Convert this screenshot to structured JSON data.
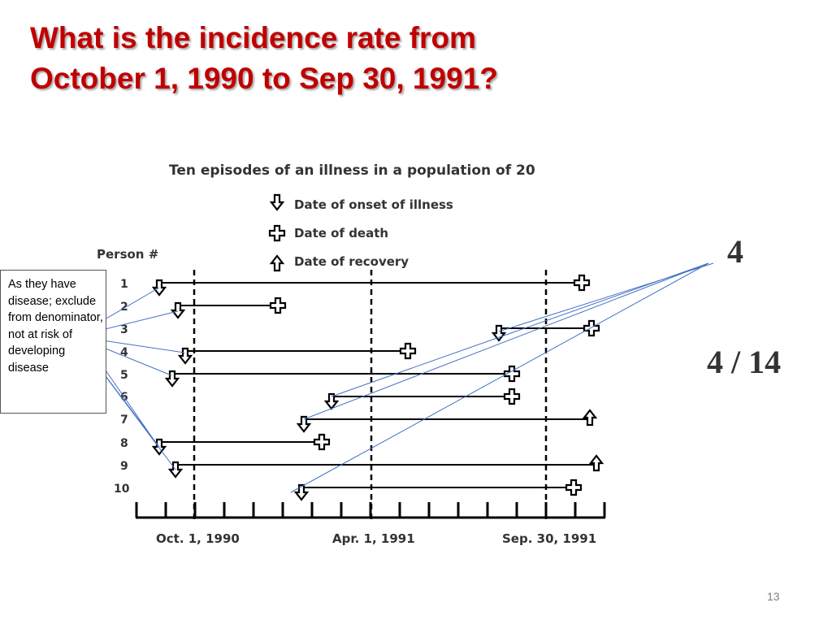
{
  "slide": {
    "title_lines": [
      "What is the incidence rate from",
      "October 1, 1990 to Sep 30, 1991?"
    ],
    "page_number": "13"
  },
  "note": {
    "text": "As they have disease; exclude from denominator, not at risk of developing disease"
  },
  "answers": {
    "count": "4",
    "rate": "4 / 14"
  },
  "figure": {
    "title": "Ten episodes of an illness in a population of 20",
    "legend": [
      {
        "icon": "down-arrow-icon",
        "label": "Date of onset of illness"
      },
      {
        "icon": "cross-icon",
        "label": "Date of death"
      },
      {
        "icon": "up-arrow-icon",
        "label": "Date of recovery"
      }
    ],
    "y_header": "Person #",
    "x_labels": [
      "Oct. 1, 1990",
      "Apr. 1, 1991",
      "Sep. 30, 1991"
    ],
    "persons": [
      {
        "id": "1",
        "end": "death"
      },
      {
        "id": "2",
        "end": "death"
      },
      {
        "id": "3",
        "end": "death"
      },
      {
        "id": "4",
        "end": "death"
      },
      {
        "id": "5",
        "end": "death"
      },
      {
        "id": "6",
        "end": "death"
      },
      {
        "id": "7",
        "end": "recovery"
      },
      {
        "id": "8",
        "end": "death"
      },
      {
        "id": "9",
        "end": "recovery"
      },
      {
        "id": "10",
        "end": "death"
      }
    ],
    "colors": {
      "line": "#000000",
      "annotation": "#4472c4",
      "title": "#c00000"
    }
  }
}
